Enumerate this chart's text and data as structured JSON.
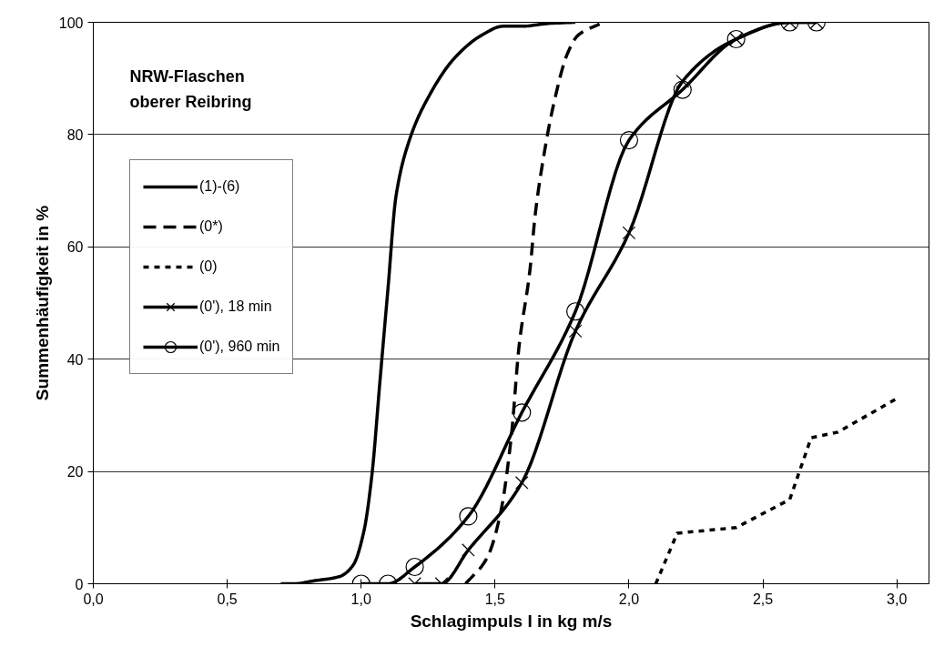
{
  "chart_data": {
    "type": "line",
    "xlabel": "Schlagimpuls I in kg m/s",
    "ylabel": "Summenhäufigkeit in %",
    "annotations": [
      "NRW-Flaschen\noberer Reibring"
    ],
    "xlim": [
      0,
      3.12
    ],
    "ylim": [
      0,
      100
    ],
    "xticks": [
      {
        "value": 0,
        "label": "0,0"
      },
      {
        "value": 0.5,
        "label": "0,5"
      },
      {
        "value": 1,
        "label": "1,0"
      },
      {
        "value": 1.5,
        "label": "1,5"
      },
      {
        "value": 2,
        "label": "2,0"
      },
      {
        "value": 2.5,
        "label": "2,5"
      },
      {
        "value": 3,
        "label": "3,0"
      }
    ],
    "yticks": [
      0,
      20,
      40,
      60,
      80,
      100
    ],
    "grid": "y",
    "legend": "left",
    "series": [
      {
        "name": "(1)-(6)",
        "color": "#000000",
        "line_style": "solid",
        "marker": "none",
        "x": [
          0.7,
          0.75,
          0.82,
          0.92,
          0.97,
          1.01,
          1.04,
          1.07,
          1.1,
          1.13,
          1.18,
          1.24,
          1.35,
          1.45,
          1.53,
          1.6,
          1.7,
          1.8
        ],
        "values": [
          0,
          0,
          0.5,
          1.3,
          3.3,
          9.3,
          19.3,
          36,
          52.5,
          69,
          79,
          85.7,
          93.7,
          97.7,
          99.3,
          99.3,
          99.8,
          100
        ]
      },
      {
        "name": "(0*)",
        "color": "#000000",
        "line_style": "dashed",
        "marker": "none",
        "x": [
          1.39,
          1.47,
          1.52,
          1.56,
          1.59,
          1.63,
          1.65,
          1.68,
          1.72,
          1.77,
          1.81,
          1.89
        ],
        "values": [
          0,
          4.6,
          12.5,
          26,
          42.5,
          55.8,
          65.8,
          75.7,
          85.7,
          94.4,
          97.7,
          99.7
        ]
      },
      {
        "name": "(0)",
        "color": "#000000",
        "line_style": "dotted",
        "marker": "none",
        "x": [
          2.1,
          2.18,
          2.4,
          2.6,
          2.68,
          2.78,
          3.0
        ],
        "values": [
          0,
          9,
          10,
          15,
          26,
          27,
          33
        ]
      },
      {
        "name": "(0'), 18 min",
        "color": "#000000",
        "line_style": "solid",
        "marker": "cross",
        "x": [
          1.2,
          1.3,
          1.4,
          1.6,
          1.8,
          2.0,
          2.2,
          2.4,
          2.6,
          2.7
        ],
        "values": [
          0,
          0,
          6,
          18,
          45,
          62.5,
          89.5,
          97,
          100,
          100
        ]
      },
      {
        "name": "(0'), 960 min",
        "color": "#000000",
        "line_style": "solid",
        "marker": "circle",
        "x": [
          1.0,
          1.1,
          1.2,
          1.4,
          1.6,
          1.8,
          2.0,
          2.2,
          2.4,
          2.6,
          2.7
        ],
        "values": [
          0,
          0,
          3,
          12,
          30.5,
          48.5,
          79,
          88,
          97,
          100,
          100
        ]
      }
    ]
  }
}
